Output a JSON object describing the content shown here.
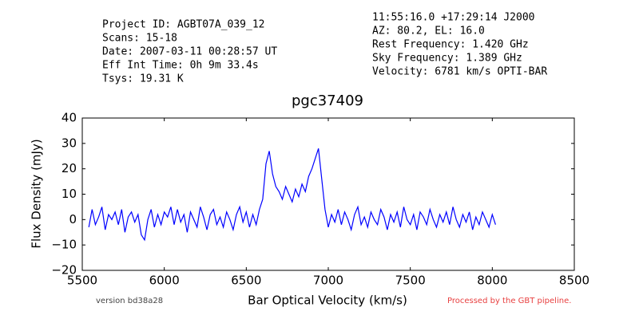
{
  "chart_data": {
    "type": "line",
    "title": "pgc37409",
    "info_left": [
      "Project ID: AGBT07A_039_12",
      "Scans: 15-18",
      "Date: 2007-03-11 00:28:57 UT",
      "Eff Int Time: 0h 9m 33.4s",
      "Tsys: 19.31 K"
    ],
    "info_right": [
      "11:55:16.0 +17:29:14 J2000",
      "AZ: 80.2, EL: 16.0",
      "Rest Frequency:   1.420 GHz",
      "Sky Frequency:    1.389 GHz",
      "Velocity: 6781 km/s OPTI-BAR"
    ],
    "xlabel": "Bar Optical Velocity (km/s)",
    "ylabel": "Flux Density (mJy)",
    "footer_left": "version bd38a28",
    "footer_right": "Processed by the GBT pipeline.",
    "color": "#0000ff",
    "xlim": [
      5500,
      8500
    ],
    "xticks": [
      5500,
      6000,
      6500,
      7000,
      7500,
      8000,
      8500
    ],
    "ylim": [
      -20,
      40
    ],
    "yticks": [
      {
        "value": -20,
        "label": "−20"
      },
      {
        "value": -10,
        "label": "−10"
      },
      0,
      10,
      20,
      30,
      40
    ],
    "x": [
      5540,
      5560,
      5580,
      5600,
      5620,
      5640,
      5660,
      5680,
      5700,
      5720,
      5740,
      5760,
      5780,
      5800,
      5820,
      5840,
      5860,
      5880,
      5900,
      5920,
      5940,
      5960,
      5980,
      6000,
      6020,
      6040,
      6060,
      6080,
      6100,
      6120,
      6140,
      6160,
      6180,
      6200,
      6220,
      6240,
      6260,
      6280,
      6300,
      6320,
      6340,
      6360,
      6380,
      6400,
      6420,
      6440,
      6460,
      6480,
      6500,
      6520,
      6540,
      6560,
      6580,
      6600,
      6620,
      6640,
      6660,
      6680,
      6700,
      6720,
      6740,
      6760,
      6780,
      6800,
      6820,
      6840,
      6860,
      6880,
      6900,
      6920,
      6940,
      6960,
      6980,
      7000,
      7020,
      7040,
      7060,
      7080,
      7100,
      7120,
      7140,
      7160,
      7180,
      7200,
      7220,
      7240,
      7260,
      7280,
      7300,
      7320,
      7340,
      7360,
      7380,
      7400,
      7420,
      7440,
      7460,
      7480,
      7500,
      7520,
      7540,
      7560,
      7580,
      7600,
      7620,
      7640,
      7660,
      7680,
      7700,
      7720,
      7740,
      7760,
      7780,
      7800,
      7820,
      7840,
      7860,
      7880,
      7900,
      7920,
      7940,
      7960,
      7980,
      8000,
      8020
    ],
    "values": [
      -3,
      4,
      -2,
      1,
      5,
      -4,
      2,
      0,
      3,
      -2,
      4,
      -5,
      1,
      3,
      -1,
      2,
      -6,
      -8,
      0,
      4,
      -3,
      2,
      -2,
      3,
      1,
      5,
      -2,
      4,
      -1,
      2,
      -5,
      3,
      0,
      -3,
      5,
      1,
      -4,
      2,
      4,
      -2,
      1,
      -3,
      3,
      0,
      -4,
      2,
      5,
      -1,
      3,
      -3,
      2,
      -2,
      4,
      8,
      22,
      27,
      18,
      13,
      11,
      8,
      13,
      10,
      7,
      12,
      9,
      14,
      11,
      17,
      20,
      24,
      28,
      16,
      4,
      -3,
      2,
      -1,
      4,
      -2,
      3,
      0,
      -4,
      2,
      5,
      -2,
      1,
      -3,
      3,
      0,
      -2,
      4,
      1,
      -4,
      2,
      -1,
      3,
      -3,
      5,
      0,
      -2,
      2,
      -4,
      3,
      1,
      -2,
      4,
      0,
      -3,
      2,
      -1,
      3,
      -2,
      5,
      0,
      -3,
      2,
      -1,
      3,
      -4,
      1,
      -2,
      3,
      0,
      -3,
      2,
      -2
    ]
  }
}
